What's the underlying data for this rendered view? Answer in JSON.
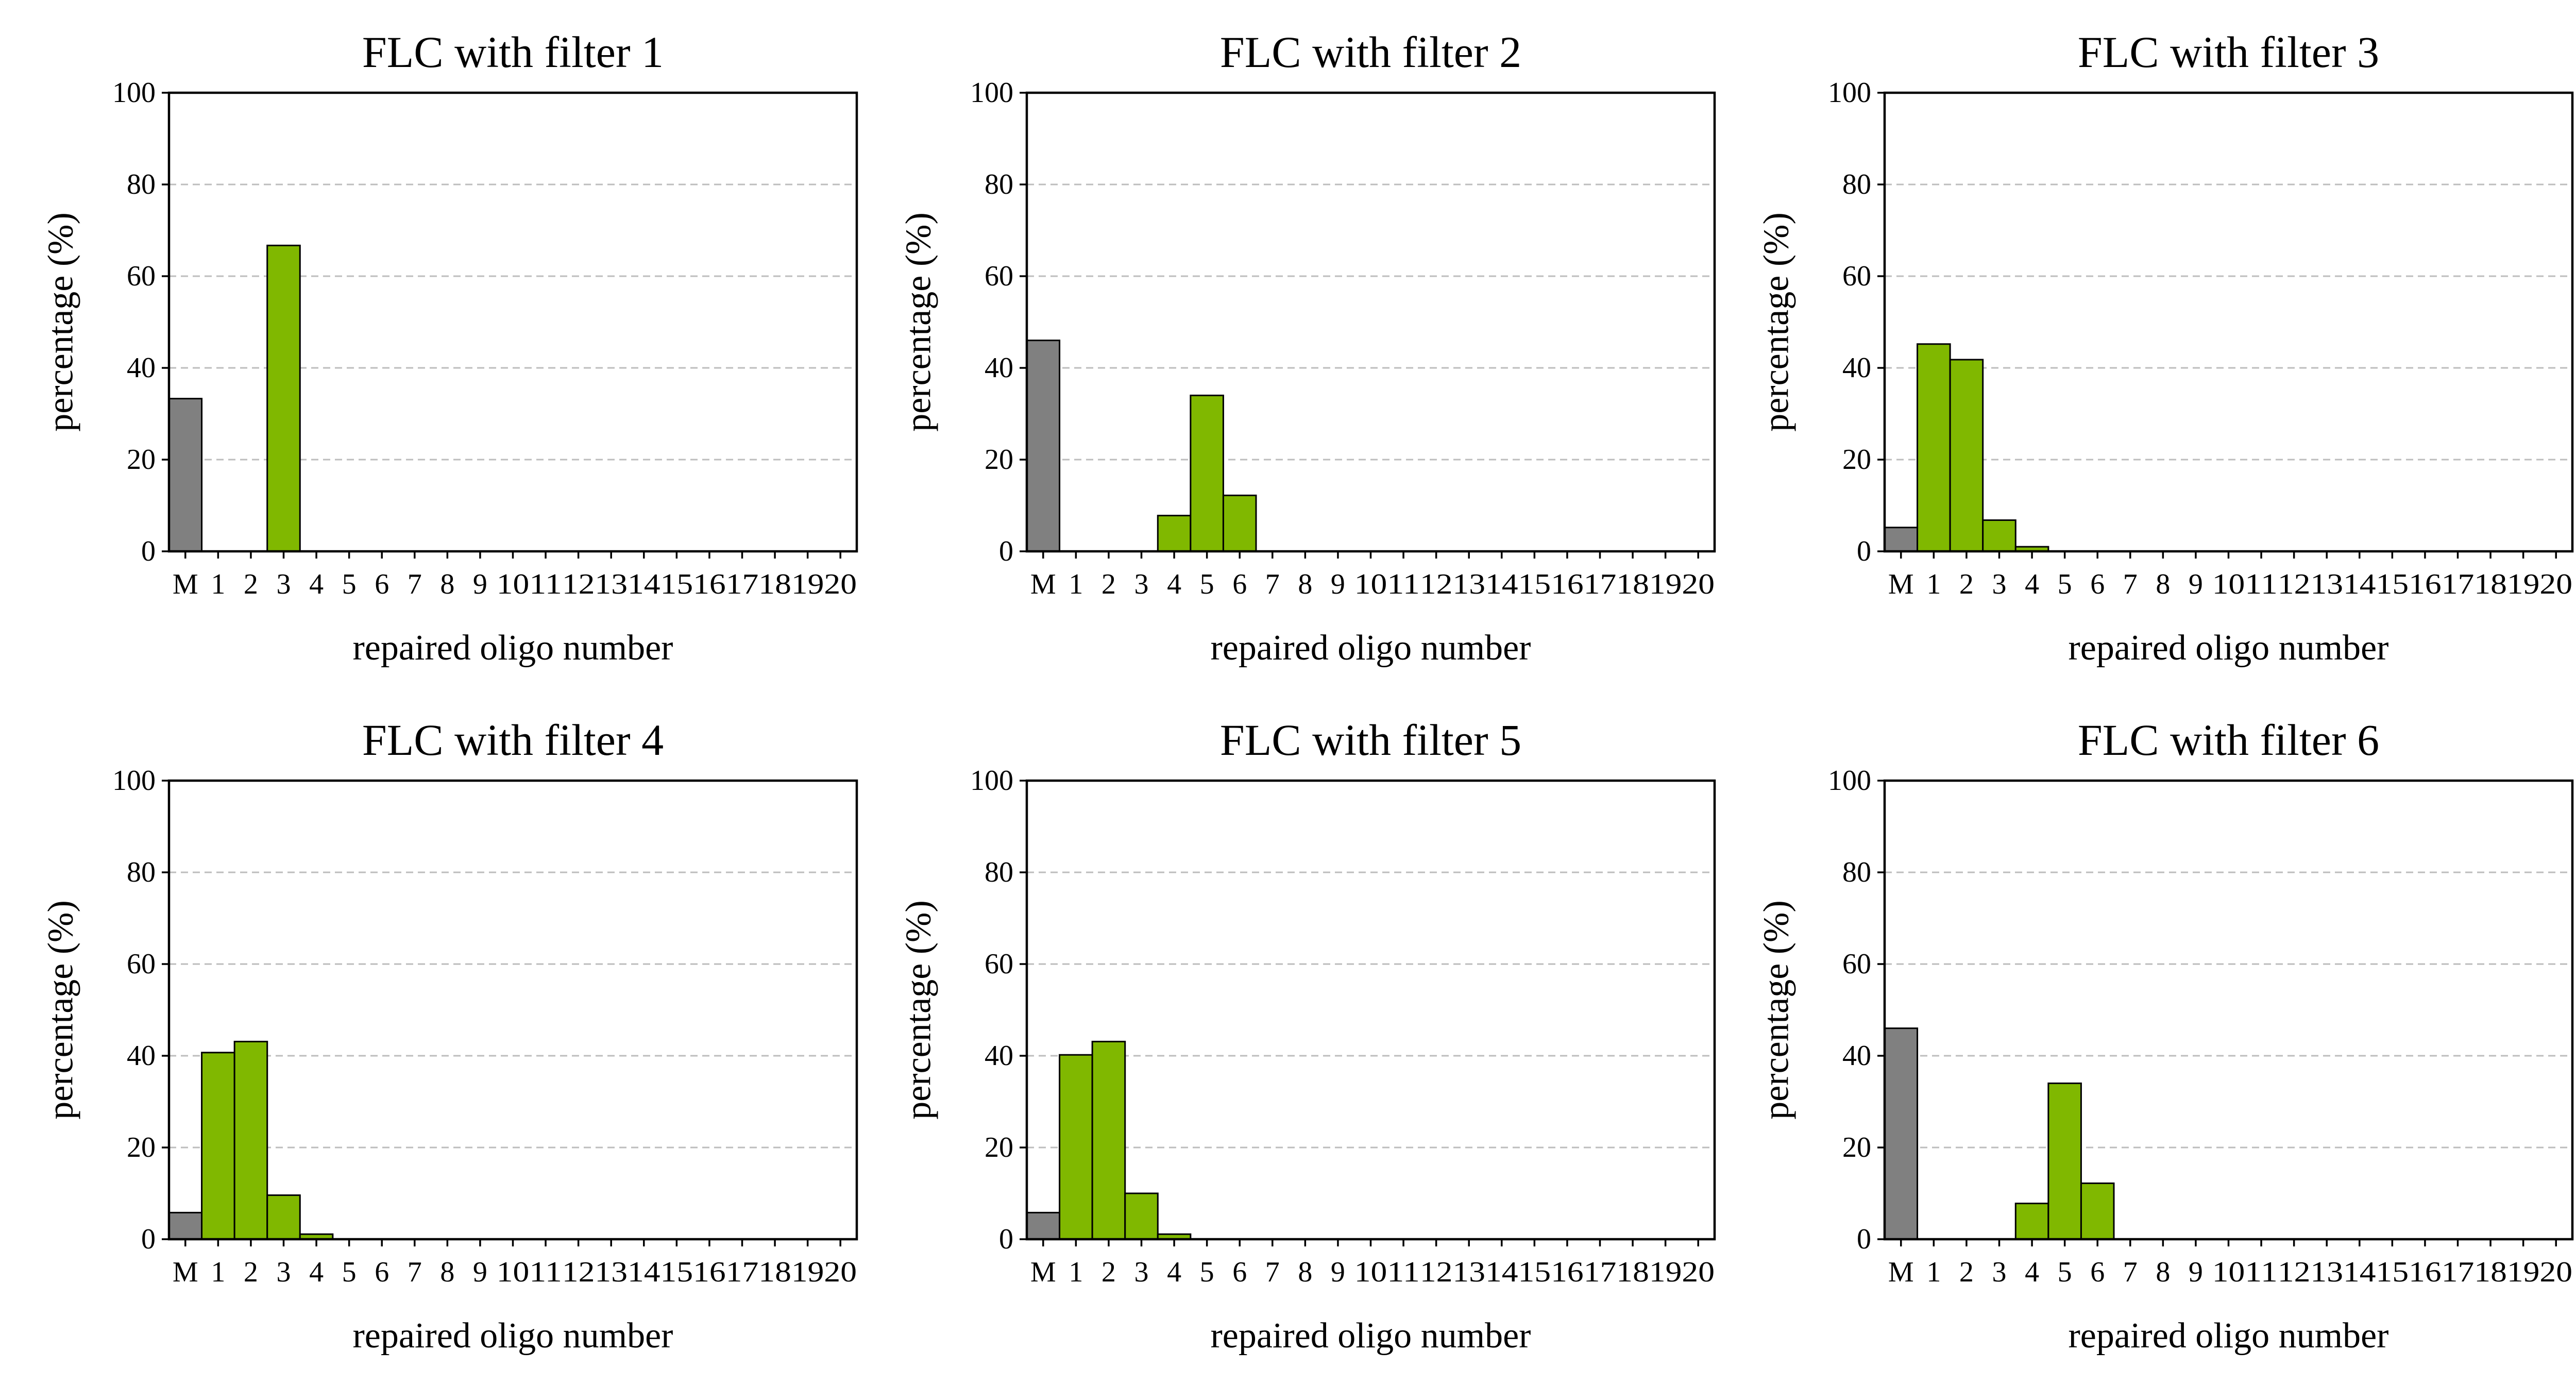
{
  "colors": {
    "mismatch": "#808080",
    "repaired": "#80b800"
  },
  "chart_data": [
    {
      "type": "bar",
      "title": "FLC with filter 1",
      "xlabel": "repaired oligo number",
      "ylabel": "percentage (%)",
      "ylim": [
        0,
        100
      ],
      "yticks": [
        "0",
        "20",
        "40",
        "60",
        "80",
        "100"
      ],
      "grid": "y-dashed",
      "categories": [
        "M",
        "1",
        "2",
        "3",
        "4",
        "5",
        "6",
        "7",
        "8",
        "9",
        "10",
        "11",
        "12",
        "13",
        "14",
        "15",
        "16",
        "17",
        "18",
        "19",
        "20"
      ],
      "values": [
        33.3,
        0,
        0,
        66.7,
        0,
        0,
        0,
        0,
        0,
        0,
        0,
        0,
        0,
        0,
        0,
        0,
        0,
        0,
        0,
        0,
        0
      ]
    },
    {
      "type": "bar",
      "title": "FLC with filter 2",
      "xlabel": "repaired oligo number",
      "ylabel": "percentage (%)",
      "ylim": [
        0,
        100
      ],
      "yticks": [
        "0",
        "20",
        "40",
        "60",
        "80",
        "100"
      ],
      "grid": "y-dashed",
      "categories": [
        "M",
        "1",
        "2",
        "3",
        "4",
        "5",
        "6",
        "7",
        "8",
        "9",
        "10",
        "11",
        "12",
        "13",
        "14",
        "15",
        "16",
        "17",
        "18",
        "19",
        "20"
      ],
      "values": [
        46,
        0,
        0,
        0,
        7.8,
        34,
        12.2,
        0,
        0,
        0,
        0,
        0,
        0,
        0,
        0,
        0,
        0,
        0,
        0,
        0,
        0
      ]
    },
    {
      "type": "bar",
      "title": "FLC with filter 3",
      "xlabel": "repaired oligo number",
      "ylabel": "percentage (%)",
      "ylim": [
        0,
        100
      ],
      "yticks": [
        "0",
        "20",
        "40",
        "60",
        "80",
        "100"
      ],
      "grid": "y-dashed",
      "categories": [
        "M",
        "1",
        "2",
        "3",
        "4",
        "5",
        "6",
        "7",
        "8",
        "9",
        "10",
        "11",
        "12",
        "13",
        "14",
        "15",
        "16",
        "17",
        "18",
        "19",
        "20"
      ],
      "values": [
        5.2,
        45.2,
        41.8,
        6.8,
        1,
        0,
        0,
        0,
        0,
        0,
        0,
        0,
        0,
        0,
        0,
        0,
        0,
        0,
        0,
        0,
        0
      ]
    },
    {
      "type": "bar",
      "title": "FLC with filter 4",
      "xlabel": "repaired oligo number",
      "ylabel": "percentage (%)",
      "ylim": [
        0,
        100
      ],
      "yticks": [
        "0",
        "20",
        "40",
        "60",
        "80",
        "100"
      ],
      "grid": "y-dashed",
      "categories": [
        "M",
        "1",
        "2",
        "3",
        "4",
        "5",
        "6",
        "7",
        "8",
        "9",
        "10",
        "11",
        "12",
        "13",
        "14",
        "15",
        "16",
        "17",
        "18",
        "19",
        "20"
      ],
      "values": [
        5.8,
        40.7,
        43.1,
        9.6,
        1.1,
        0,
        0,
        0,
        0,
        0,
        0,
        0,
        0,
        0,
        0,
        0,
        0,
        0,
        0,
        0,
        0
      ]
    },
    {
      "type": "bar",
      "title": "FLC with filter 5",
      "xlabel": "repaired oligo number",
      "ylabel": "percentage (%)",
      "ylim": [
        0,
        100
      ],
      "yticks": [
        "0",
        "20",
        "40",
        "60",
        "80",
        "100"
      ],
      "grid": "y-dashed",
      "categories": [
        "M",
        "1",
        "2",
        "3",
        "4",
        "5",
        "6",
        "7",
        "8",
        "9",
        "10",
        "11",
        "12",
        "13",
        "14",
        "15",
        "16",
        "17",
        "18",
        "19",
        "20"
      ],
      "values": [
        5.8,
        40.2,
        43.1,
        10,
        1.1,
        0,
        0,
        0,
        0,
        0,
        0,
        0,
        0,
        0,
        0,
        0,
        0,
        0,
        0,
        0,
        0
      ]
    },
    {
      "type": "bar",
      "title": "FLC with filter 6",
      "xlabel": "repaired oligo number",
      "ylabel": "percentage (%)",
      "ylim": [
        0,
        100
      ],
      "yticks": [
        "0",
        "20",
        "40",
        "60",
        "80",
        "100"
      ],
      "grid": "y-dashed",
      "categories": [
        "M",
        "1",
        "2",
        "3",
        "4",
        "5",
        "6",
        "7",
        "8",
        "9",
        "10",
        "11",
        "12",
        "13",
        "14",
        "15",
        "16",
        "17",
        "18",
        "19",
        "20"
      ],
      "values": [
        46,
        0,
        0,
        0,
        7.8,
        34,
        12.2,
        0,
        0,
        0,
        0,
        0,
        0,
        0,
        0,
        0,
        0,
        0,
        0,
        0,
        0
      ]
    }
  ]
}
